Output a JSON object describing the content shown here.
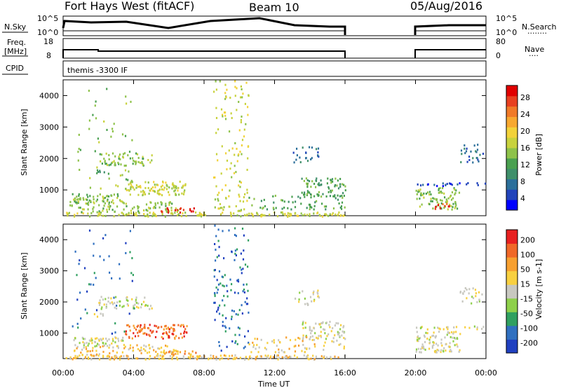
{
  "header": {
    "title": "Fort Hays West (fitACF)",
    "beam": "Beam 10",
    "date": "05/Aug/2016"
  },
  "strips": {
    "nsky": {
      "label": "N.Sky",
      "ticks_left": [
        "10^5",
        "10^0"
      ],
      "ticks_right": [
        "10^5",
        "10^0"
      ],
      "right_label": "N.Search",
      "right_dots": "........"
    },
    "freq": {
      "label_lines": [
        "Freq.",
        "[MHz]"
      ],
      "ticks_left": [
        "18",
        "8"
      ],
      "ticks_right": [
        "80",
        "0"
      ],
      "right_label": "Nave",
      "right_dots": "...."
    },
    "cpid": {
      "label": "CPID",
      "text": "themis -3300 IF"
    }
  },
  "x_axis": {
    "label": "Time UT",
    "tick_labels": [
      "00:00",
      "04:00",
      "08:00",
      "12:00",
      "16:00",
      "20:00",
      "00:00"
    ],
    "hours": [
      0,
      4,
      8,
      12,
      16,
      20,
      24
    ],
    "data_gap_hours": [
      16,
      20
    ]
  },
  "chart_data": [
    {
      "type": "heatmap",
      "name": "power",
      "ylabel": "Slant Range [km]",
      "yticks": [
        1000,
        2000,
        3000,
        4000
      ],
      "ylim": [
        180,
        4500
      ],
      "xlim_hours": [
        0,
        24
      ],
      "colorbar": {
        "label": "Power [dB]",
        "tick_labels": [
          "28",
          "24",
          "20",
          "16",
          "12",
          "8",
          "4"
        ],
        "range": [
          0,
          30
        ],
        "colors": [
          "#0000ff",
          "#2244bb",
          "#2c6f9a",
          "#3f8f6a",
          "#4aa050",
          "#8ec24a",
          "#c8d23e",
          "#f2d23a",
          "#f7a830",
          "#f07a28",
          "#e84020",
          "#e00000"
        ]
      }
    },
    {
      "type": "heatmap",
      "name": "velocity",
      "ylabel": "Slant Range [km]",
      "yticks": [
        1000,
        2000,
        3000,
        4000
      ],
      "ylim": [
        180,
        4500
      ],
      "xlim_hours": [
        0,
        24
      ],
      "colorbar": {
        "label": "Velocity [m s-1]",
        "tick_labels": [
          "200",
          "100",
          "50",
          "15",
          "-15",
          "-50",
          "-100",
          "-200"
        ],
        "range": [
          -250,
          250
        ],
        "colors": [
          "#2040c0",
          "#3070c0",
          "#30a060",
          "#8ed04a",
          "#c8c8c0",
          "#f8d040",
          "#f7a030",
          "#f06828",
          "#e82020"
        ]
      }
    }
  ]
}
